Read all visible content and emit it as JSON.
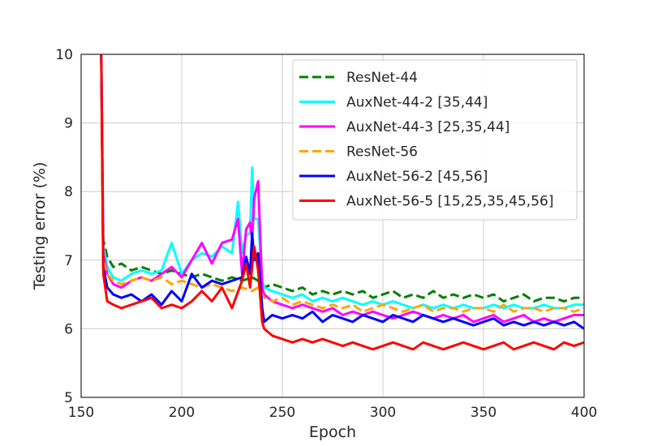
{
  "chart_data": {
    "type": "line",
    "title": "",
    "xlabel": "Epoch",
    "ylabel": "Testing error (%)",
    "xlim": [
      150,
      400
    ],
    "ylim": [
      5,
      10
    ],
    "xticks": [
      150,
      200,
      250,
      300,
      350,
      400
    ],
    "yticks": [
      5,
      6,
      7,
      8,
      9,
      10
    ],
    "xtick_labels": [
      "150",
      "200",
      "250",
      "300",
      "350",
      "400"
    ],
    "ytick_labels": [
      "5",
      "6",
      "7",
      "8",
      "9",
      "10"
    ],
    "grid": true,
    "legend_position": "top-right",
    "series": [
      {
        "name": "ResNet-44",
        "color": "#008000",
        "dash": "dashed",
        "x": [
          160,
          161,
          163,
          166,
          170,
          175,
          180,
          185,
          190,
          195,
          200,
          205,
          210,
          215,
          220,
          225,
          230,
          235,
          238,
          240,
          241,
          245,
          250,
          255,
          260,
          265,
          270,
          275,
          280,
          285,
          290,
          295,
          300,
          305,
          310,
          315,
          320,
          325,
          330,
          335,
          340,
          345,
          350,
          355,
          360,
          365,
          370,
          375,
          380,
          385,
          390,
          395,
          400
        ],
        "y": [
          10.0,
          7.3,
          7.05,
          6.9,
          6.95,
          6.85,
          6.9,
          6.85,
          6.8,
          6.85,
          6.8,
          6.75,
          6.8,
          6.75,
          6.7,
          6.75,
          6.7,
          6.75,
          6.7,
          6.65,
          6.6,
          6.65,
          6.6,
          6.55,
          6.6,
          6.5,
          6.55,
          6.5,
          6.55,
          6.5,
          6.55,
          6.45,
          6.5,
          6.55,
          6.45,
          6.5,
          6.45,
          6.55,
          6.45,
          6.5,
          6.45,
          6.5,
          6.45,
          6.5,
          6.4,
          6.45,
          6.5,
          6.4,
          6.45,
          6.45,
          6.4,
          6.45,
          6.45
        ]
      },
      {
        "name": "AuxNet-44-2 [35,44]",
        "color": "#00ffff",
        "dash": "solid",
        "x": [
          160,
          161,
          163,
          166,
          170,
          175,
          180,
          185,
          190,
          195,
          200,
          205,
          210,
          215,
          220,
          225,
          228,
          230,
          232,
          234,
          235,
          236,
          238,
          240,
          241,
          245,
          250,
          255,
          260,
          265,
          270,
          275,
          280,
          285,
          290,
          295,
          300,
          305,
          310,
          315,
          320,
          325,
          330,
          335,
          340,
          345,
          350,
          355,
          360,
          365,
          370,
          375,
          380,
          385,
          390,
          395,
          400
        ],
        "y": [
          10.0,
          7.2,
          6.9,
          6.75,
          6.7,
          6.8,
          6.85,
          6.8,
          6.85,
          7.25,
          6.8,
          7.0,
          7.1,
          7.05,
          7.2,
          7.1,
          7.85,
          7.1,
          7.35,
          7.4,
          8.35,
          7.6,
          7.6,
          6.7,
          6.6,
          6.55,
          6.5,
          6.45,
          6.5,
          6.4,
          6.45,
          6.4,
          6.45,
          6.4,
          6.35,
          6.4,
          6.35,
          6.4,
          6.35,
          6.3,
          6.35,
          6.3,
          6.35,
          6.3,
          6.35,
          6.3,
          6.3,
          6.35,
          6.3,
          6.35,
          6.3,
          6.3,
          6.35,
          6.3,
          6.3,
          6.35,
          6.35
        ]
      },
      {
        "name": "AuxNet-44-3 [25,35,44]",
        "color": "#ff00ff",
        "dash": "solid",
        "x": [
          160,
          161,
          163,
          166,
          170,
          175,
          180,
          185,
          190,
          195,
          200,
          205,
          210,
          215,
          220,
          225,
          228,
          230,
          232,
          234,
          235,
          236,
          238,
          240,
          241,
          245,
          250,
          255,
          260,
          265,
          270,
          275,
          280,
          285,
          290,
          295,
          300,
          305,
          310,
          315,
          320,
          325,
          330,
          335,
          340,
          345,
          350,
          355,
          360,
          365,
          370,
          375,
          380,
          385,
          390,
          395,
          400
        ],
        "y": [
          10.0,
          7.1,
          6.8,
          6.65,
          6.6,
          6.7,
          6.75,
          6.7,
          6.8,
          6.9,
          6.75,
          7.0,
          7.25,
          6.95,
          7.25,
          7.3,
          7.6,
          6.8,
          7.45,
          7.55,
          7.3,
          7.9,
          8.15,
          6.6,
          6.5,
          6.4,
          6.35,
          6.3,
          6.35,
          6.3,
          6.25,
          6.3,
          6.2,
          6.25,
          6.2,
          6.25,
          6.2,
          6.15,
          6.2,
          6.25,
          6.2,
          6.15,
          6.2,
          6.15,
          6.2,
          6.1,
          6.15,
          6.2,
          6.1,
          6.15,
          6.2,
          6.1,
          6.15,
          6.1,
          6.15,
          6.2,
          6.2
        ]
      },
      {
        "name": "ResNet-56",
        "color": "#ffa500",
        "dash": "dashed",
        "x": [
          160,
          161,
          163,
          166,
          170,
          175,
          180,
          185,
          190,
          195,
          200,
          205,
          210,
          215,
          220,
          225,
          230,
          235,
          238,
          240,
          241,
          245,
          250,
          255,
          260,
          265,
          270,
          275,
          280,
          285,
          290,
          295,
          300,
          305,
          310,
          315,
          320,
          325,
          330,
          335,
          340,
          345,
          350,
          355,
          360,
          365,
          370,
          375,
          380,
          385,
          390,
          395,
          400
        ],
        "y": [
          10.0,
          7.0,
          6.8,
          6.7,
          6.65,
          6.7,
          6.75,
          6.7,
          6.75,
          6.65,
          6.7,
          6.65,
          6.6,
          6.65,
          6.6,
          6.55,
          6.6,
          6.55,
          6.6,
          6.5,
          6.45,
          6.4,
          6.45,
          6.35,
          6.4,
          6.35,
          6.3,
          6.35,
          6.3,
          6.35,
          6.25,
          6.3,
          6.35,
          6.3,
          6.25,
          6.3,
          6.35,
          6.25,
          6.3,
          6.3,
          6.25,
          6.3,
          6.3,
          6.25,
          6.35,
          6.25,
          6.3,
          6.3,
          6.25,
          6.3,
          6.3,
          6.25,
          6.3
        ]
      },
      {
        "name": "AuxNet-56-2 [45,56]",
        "color": "#0000ff",
        "dash": "solid",
        "x": [
          160,
          161,
          163,
          166,
          170,
          175,
          180,
          185,
          190,
          195,
          200,
          205,
          210,
          215,
          220,
          225,
          230,
          232,
          234,
          235,
          236,
          238,
          240,
          241,
          245,
          250,
          255,
          260,
          265,
          270,
          275,
          280,
          285,
          290,
          295,
          300,
          305,
          310,
          315,
          320,
          325,
          330,
          335,
          340,
          345,
          350,
          355,
          360,
          365,
          370,
          375,
          380,
          385,
          390,
          395,
          400
        ],
        "y": [
          10.0,
          6.9,
          6.6,
          6.5,
          6.45,
          6.5,
          6.4,
          6.5,
          6.35,
          6.55,
          6.4,
          6.8,
          6.6,
          6.7,
          6.65,
          6.7,
          6.75,
          7.05,
          6.8,
          7.4,
          7.0,
          7.1,
          6.3,
          6.1,
          6.2,
          6.15,
          6.2,
          6.15,
          6.25,
          6.1,
          6.2,
          6.15,
          6.1,
          6.2,
          6.15,
          6.1,
          6.2,
          6.15,
          6.1,
          6.2,
          6.15,
          6.1,
          6.15,
          6.1,
          6.05,
          6.1,
          6.15,
          6.05,
          6.1,
          6.05,
          6.1,
          6.05,
          6.1,
          6.05,
          6.1,
          6.0
        ]
      },
      {
        "name": "AuxNet-56-5 [15,25,35,45,56]",
        "color": "#ff0000",
        "dash": "solid",
        "x": [
          160,
          161,
          163,
          166,
          170,
          175,
          180,
          185,
          190,
          195,
          200,
          205,
          210,
          215,
          220,
          225,
          230,
          232,
          234,
          236,
          238,
          240,
          241,
          245,
          250,
          255,
          260,
          265,
          270,
          275,
          280,
          285,
          290,
          295,
          300,
          305,
          310,
          315,
          320,
          325,
          330,
          335,
          340,
          345,
          350,
          355,
          360,
          365,
          370,
          375,
          380,
          385,
          390,
          395,
          400
        ],
        "y": [
          10.0,
          6.8,
          6.4,
          6.35,
          6.3,
          6.35,
          6.4,
          6.45,
          6.3,
          6.35,
          6.3,
          6.4,
          6.55,
          6.4,
          6.6,
          6.3,
          6.7,
          6.95,
          6.6,
          7.2,
          6.85,
          6.1,
          6.0,
          5.9,
          5.85,
          5.8,
          5.85,
          5.8,
          5.85,
          5.8,
          5.75,
          5.8,
          5.75,
          5.7,
          5.75,
          5.8,
          5.75,
          5.7,
          5.8,
          5.75,
          5.7,
          5.75,
          5.8,
          5.75,
          5.7,
          5.75,
          5.8,
          5.7,
          5.75,
          5.8,
          5.75,
          5.7,
          5.8,
          5.75,
          5.8
        ]
      }
    ]
  }
}
